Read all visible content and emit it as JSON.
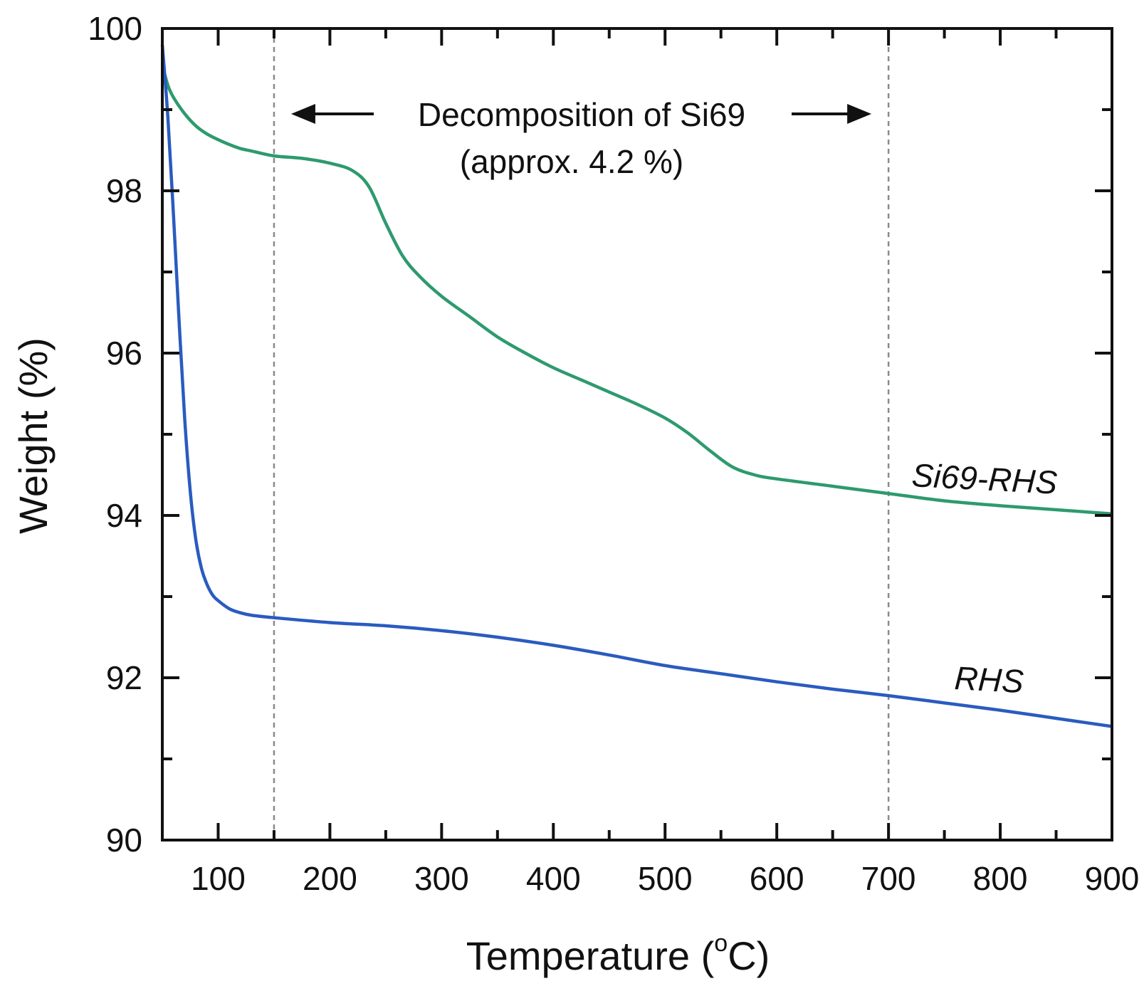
{
  "chart_data": {
    "type": "line",
    "title": "",
    "xlabel_main": "Temperature (",
    "xlabel_deg": "o",
    "xlabel_end": "C)",
    "ylabel": "Weight (%)",
    "xlim": [
      50,
      900
    ],
    "ylim": [
      90,
      100
    ],
    "xticks": [
      100,
      200,
      300,
      400,
      500,
      600,
      700,
      800,
      900
    ],
    "xminor": [
      150,
      250,
      350,
      450,
      550,
      650,
      750,
      850
    ],
    "yticks": [
      90,
      92,
      94,
      96,
      98,
      100
    ],
    "yminor": [
      91,
      93,
      95,
      97,
      99
    ],
    "vlines": [
      150,
      700
    ],
    "annotation": {
      "line1": "Decomposition of Si69",
      "line2": "(approx. 4.2 %)",
      "arrow_from": 150,
      "arrow_to": 700
    },
    "series": [
      {
        "name": "Si69-RHS",
        "color": "#2e9a6e",
        "label_x": 800,
        "label_y": 94.5,
        "x": [
          50,
          55,
          60,
          70,
          80,
          90,
          100,
          110,
          120,
          130,
          150,
          175,
          200,
          220,
          235,
          250,
          265,
          280,
          300,
          325,
          350,
          375,
          400,
          425,
          450,
          475,
          500,
          520,
          540,
          560,
          580,
          600,
          650,
          700,
          750,
          800,
          850,
          900
        ],
        "values": [
          99.55,
          99.3,
          99.15,
          98.95,
          98.8,
          98.7,
          98.63,
          98.57,
          98.52,
          98.49,
          98.43,
          98.4,
          98.34,
          98.25,
          98.05,
          97.6,
          97.2,
          96.95,
          96.7,
          96.45,
          96.2,
          96.0,
          95.82,
          95.67,
          95.52,
          95.37,
          95.2,
          95.02,
          94.8,
          94.6,
          94.5,
          94.45,
          94.36,
          94.27,
          94.18,
          94.12,
          94.07,
          94.02
        ]
      },
      {
        "name": "RHS",
        "color": "#2a5bbf",
        "label_x": 800,
        "label_y": 91.95,
        "x": [
          50,
          55,
          60,
          65,
          70,
          75,
          80,
          85,
          90,
          95,
          100,
          110,
          120,
          130,
          150,
          200,
          250,
          300,
          350,
          400,
          450,
          500,
          550,
          600,
          650,
          700,
          750,
          800,
          850,
          900
        ],
        "values": [
          99.8,
          98.9,
          97.7,
          96.4,
          95.2,
          94.3,
          93.7,
          93.35,
          93.15,
          93.02,
          92.95,
          92.85,
          92.8,
          92.77,
          92.74,
          92.68,
          92.64,
          92.58,
          92.5,
          92.4,
          92.28,
          92.15,
          92.05,
          91.95,
          91.86,
          91.78,
          91.69,
          91.6,
          91.5,
          91.4
        ]
      }
    ]
  }
}
